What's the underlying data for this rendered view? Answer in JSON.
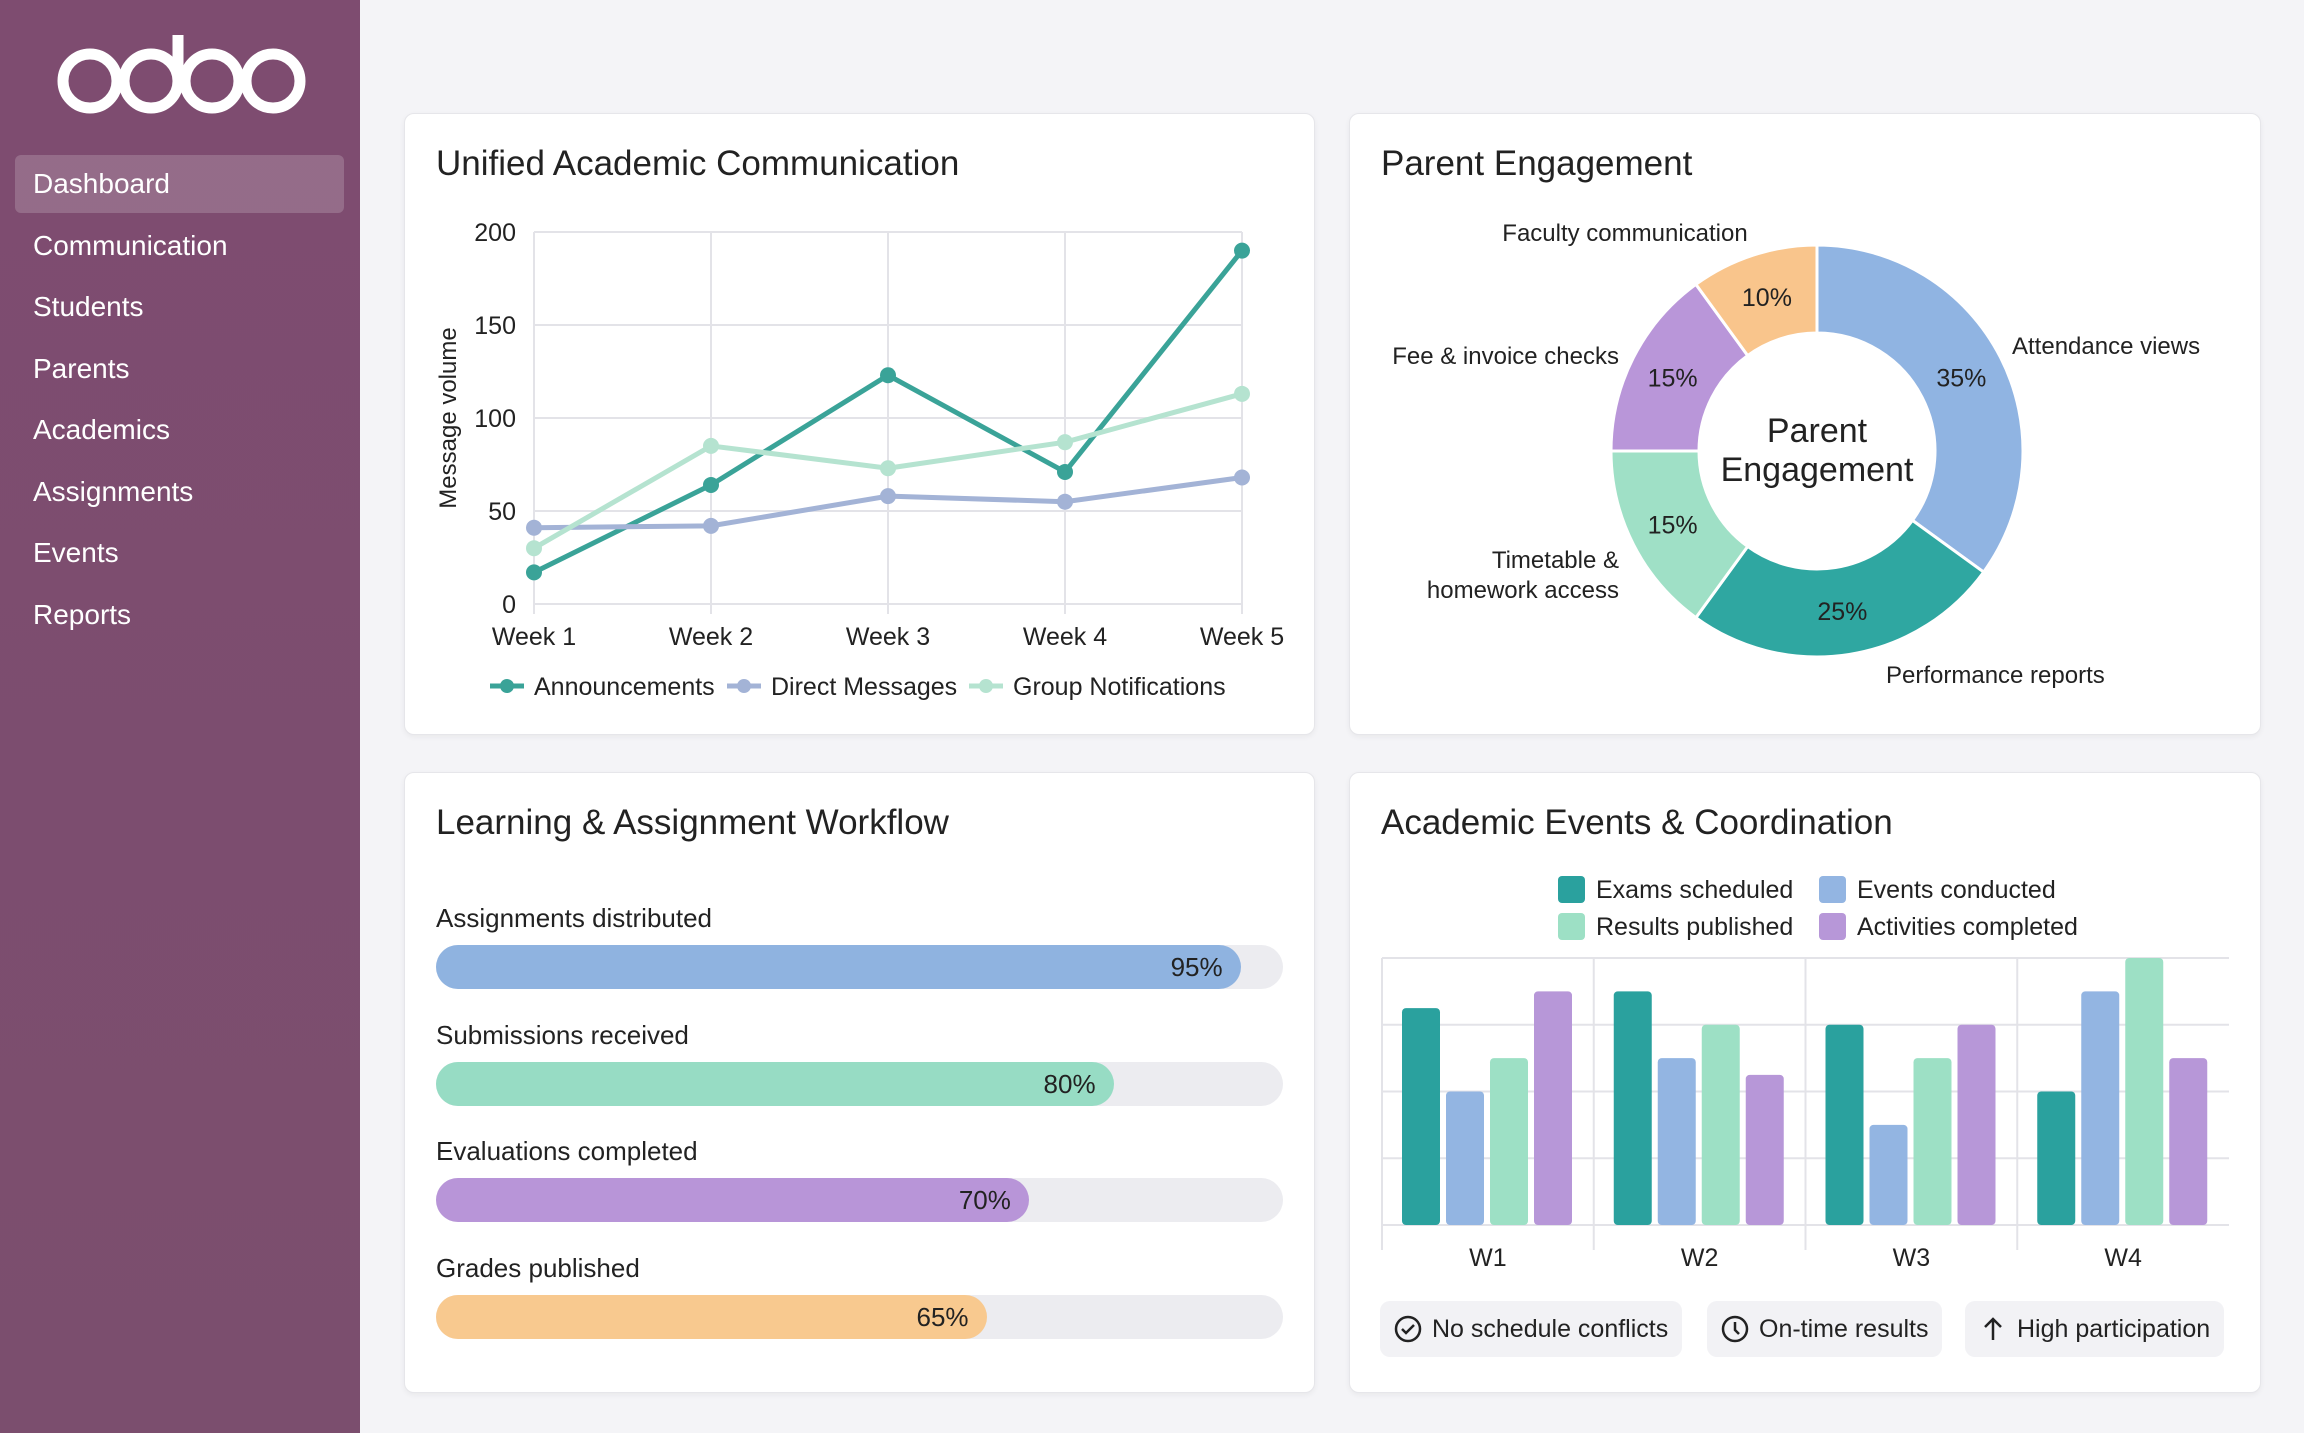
{
  "sidebar": {
    "logo": "odoo",
    "items": [
      {
        "label": "Dashboard",
        "active": true
      },
      {
        "label": "Communication"
      },
      {
        "label": "Students"
      },
      {
        "label": "Parents"
      },
      {
        "label": "Academics"
      },
      {
        "label": "Assignments"
      },
      {
        "label": "Events"
      },
      {
        "label": "Reports"
      }
    ],
    "color": "#7d4e6f"
  },
  "communication": {
    "title": "Unified Academic Communication"
  },
  "parent": {
    "title": "Parent Engagement"
  },
  "workflow": {
    "title": "Learning & Assignment Workflow",
    "items": [
      {
        "label": "Assignments distributed",
        "value": 95,
        "text": "95%",
        "color": "#8fb3e0"
      },
      {
        "label": "Submissions received",
        "value": 80,
        "text": "80%",
        "color": "#97dcc4"
      },
      {
        "label": "Evaluations completed",
        "value": 70,
        "text": "70%",
        "color": "#b895d8"
      },
      {
        "label": "Grades published",
        "value": 65,
        "text": "65%",
        "color": "#f8c98f"
      }
    ]
  },
  "events": {
    "title": "Academic Events & Coordination",
    "pills": [
      {
        "icon": "check-circle-icon",
        "label": "No schedule conflicts"
      },
      {
        "icon": "clock-icon",
        "label": "On-time results"
      },
      {
        "icon": "arrow-up-icon",
        "label": "High participation"
      }
    ]
  },
  "chart_data": [
    {
      "type": "line",
      "ylabel": "Message volume",
      "categories": [
        "Week 1",
        "Week 2",
        "Week 3",
        "Week 4",
        "Week 5"
      ],
      "ylim": [
        0,
        200
      ],
      "yticks": [
        0,
        50,
        100,
        150,
        200
      ],
      "grid": true,
      "legend": "bottom",
      "series": [
        {
          "name": "Announcements",
          "values": [
            17,
            64,
            123,
            71,
            190
          ],
          "color": "#3aa398"
        },
        {
          "name": "Direct Messages",
          "values": [
            41,
            42,
            58,
            55,
            68
          ],
          "color": "#a3b3d6"
        },
        {
          "name": "Group Notifications",
          "values": [
            30,
            85,
            73,
            87,
            113
          ],
          "color": "#b5e3d0"
        }
      ]
    },
    {
      "type": "pie",
      "donut": true,
      "center_label": "Parent Engagement",
      "slices": [
        {
          "name": "Attendance views",
          "value": 35,
          "label": "35%",
          "color": "#90b4e2"
        },
        {
          "name": "Performance reports",
          "value": 25,
          "label": "25%",
          "color": "#2fa7a1"
        },
        {
          "name": "Timetable & homework access",
          "value": 15,
          "label": "15%",
          "color": "#9fe0c6"
        },
        {
          "name": "Fee & invoice checks",
          "value": 15,
          "label": "15%",
          "color": "#b996d9"
        },
        {
          "name": "Faculty communication",
          "value": 10,
          "label": "10%",
          "color": "#f9c58c"
        }
      ]
    },
    {
      "type": "bar",
      "categories": [
        "W1",
        "W2",
        "W3",
        "W4"
      ],
      "ylim": [
        0,
        8
      ],
      "grid": true,
      "legend": "top",
      "series": [
        {
          "name": "Exams scheduled",
          "values": [
            6.5,
            7,
            6,
            4
          ],
          "color": "#2aa19e"
        },
        {
          "name": "Events conducted",
          "values": [
            4,
            5,
            3,
            7
          ],
          "color": "#93b5e2"
        },
        {
          "name": "Results published",
          "values": [
            5,
            6,
            5,
            8
          ],
          "color": "#9de0c5"
        },
        {
          "name": "Activities completed",
          "values": [
            7,
            4.5,
            6,
            5
          ],
          "color": "#b797d8"
        }
      ]
    }
  ]
}
